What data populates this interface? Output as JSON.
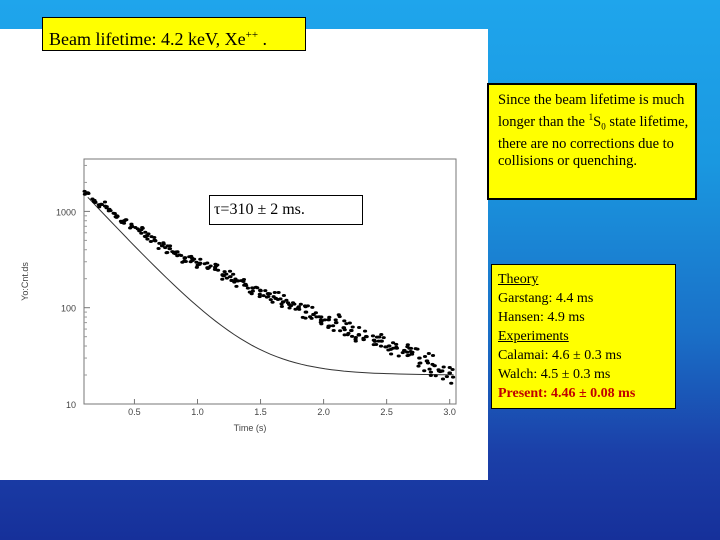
{
  "title": {
    "text": "Beam lifetime: 4.2 keV, Xe",
    "sup": "++",
    "suffix": "."
  },
  "tau_label": "τ=310 ± 2 ms.",
  "note": {
    "line1": "Since the beam lifetime is much longer than the ",
    "state_sup": "1",
    "state_letter": "S",
    "state_sub": "0",
    "line2": " state lifetime, there are no corrections due to collisions or quenching."
  },
  "references": {
    "theory_heading": "Theory",
    "theory": [
      "Garstang: 4.4 ms",
      "Hansen: 4.9 ms"
    ],
    "experiments_heading": "Experiments",
    "experiments": [
      "Calamai: 4.6 ± 0.3 ms",
      "Walch: 4.5 ± 0.3 ms"
    ],
    "present": "Present: 4.46 ±  0.08 ms"
  },
  "chart_data": {
    "type": "scatter",
    "yscale": "log",
    "ylabel": "Yo:Cnt.ds",
    "xlabel": "Time (s)",
    "xticks": [
      0.5,
      1.0,
      1.5,
      2.0,
      2.5,
      3.0
    ],
    "xtick_labels": [
      "0.5",
      "1.0",
      "1.5",
      "2.0",
      "2.5",
      "3.0"
    ],
    "yticks": [
      1000,
      100,
      10
    ],
    "ytick_labels": [
      "1000",
      "100",
      "10"
    ],
    "xlim": [
      0.1,
      3.05
    ],
    "ylim": [
      10,
      3500
    ],
    "fit": {
      "form": "exponential",
      "tau_s": 0.31,
      "A": 2100,
      "y_end": 20
    },
    "series": [
      {
        "values": [
          [
            0.13,
            1550
          ],
          [
            0.18,
            1300
          ],
          [
            0.24,
            1180
          ],
          [
            0.3,
            1050
          ],
          [
            0.36,
            900
          ],
          [
            0.42,
            800
          ],
          [
            0.48,
            700
          ],
          [
            0.54,
            630
          ],
          [
            0.6,
            560
          ],
          [
            0.66,
            500
          ],
          [
            0.72,
            440
          ],
          [
            0.78,
            410
          ],
          [
            0.84,
            380
          ],
          [
            0.9,
            330
          ],
          [
            0.96,
            310
          ],
          [
            1.02,
            290
          ],
          [
            1.08,
            260
          ],
          [
            1.14,
            250
          ],
          [
            1.2,
            220
          ],
          [
            1.26,
            210
          ],
          [
            1.32,
            190
          ],
          [
            1.38,
            175
          ],
          [
            1.44,
            160
          ],
          [
            1.5,
            150
          ],
          [
            1.56,
            140
          ],
          [
            1.62,
            125
          ],
          [
            1.68,
            115
          ],
          [
            1.74,
            105
          ],
          [
            1.8,
            100
          ],
          [
            1.86,
            90
          ],
          [
            1.92,
            85
          ],
          [
            1.98,
            80
          ],
          [
            2.04,
            75
          ],
          [
            2.1,
            70
          ],
          [
            2.16,
            62
          ],
          [
            2.22,
            58
          ],
          [
            2.28,
            52
          ],
          [
            2.34,
            50
          ],
          [
            2.4,
            46
          ],
          [
            2.46,
            45
          ],
          [
            2.52,
            40
          ],
          [
            2.58,
            38
          ],
          [
            2.64,
            36
          ],
          [
            2.7,
            33
          ],
          [
            2.76,
            30
          ],
          [
            2.82,
            28
          ],
          [
            2.88,
            25
          ],
          [
            2.94,
            22
          ],
          [
            3.0,
            21
          ]
        ]
      }
    ]
  }
}
